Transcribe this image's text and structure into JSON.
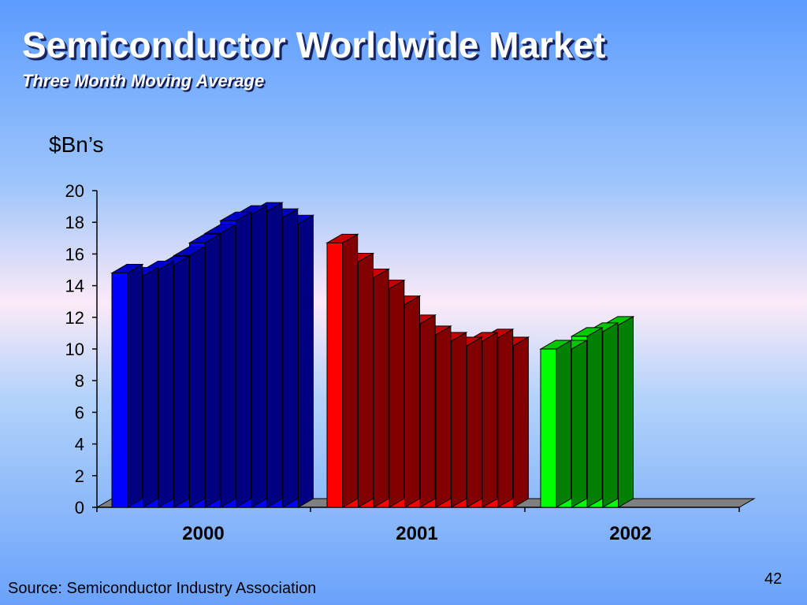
{
  "slide": {
    "title": "Semiconductor Worldwide Market",
    "subtitle": "Three Month Moving Average",
    "source": "Source: Semiconductor Industry Association",
    "page_number": "42"
  },
  "chart_data": {
    "type": "bar",
    "title": "",
    "ylabel": "$Bn’s",
    "xlabel": "",
    "ylim": [
      0,
      20
    ],
    "y_ticks": [
      0,
      2,
      4,
      6,
      8,
      10,
      12,
      14,
      16,
      18,
      20
    ],
    "grid": false,
    "style": "3d",
    "groups": [
      {
        "name": "2000",
        "color": "#0000ff",
        "values": [
          14.8,
          14.6,
          15.0,
          15.3,
          15.9,
          16.7,
          17.3,
          18.1,
          18.5,
          18.7,
          18.3,
          17.9
        ]
      },
      {
        "name": "2001",
        "color": "#ff0000",
        "values": [
          16.7,
          15.5,
          14.5,
          13.8,
          12.8,
          11.6,
          10.9,
          10.5,
          10.2,
          10.5,
          10.7,
          10.2
        ]
      },
      {
        "name": "2002",
        "color": "#00ff00",
        "values": [
          10.0,
          10.0,
          10.8,
          11.1,
          11.5
        ]
      }
    ],
    "colors": {
      "floor": "#808080",
      "axis": "#000000"
    }
  }
}
